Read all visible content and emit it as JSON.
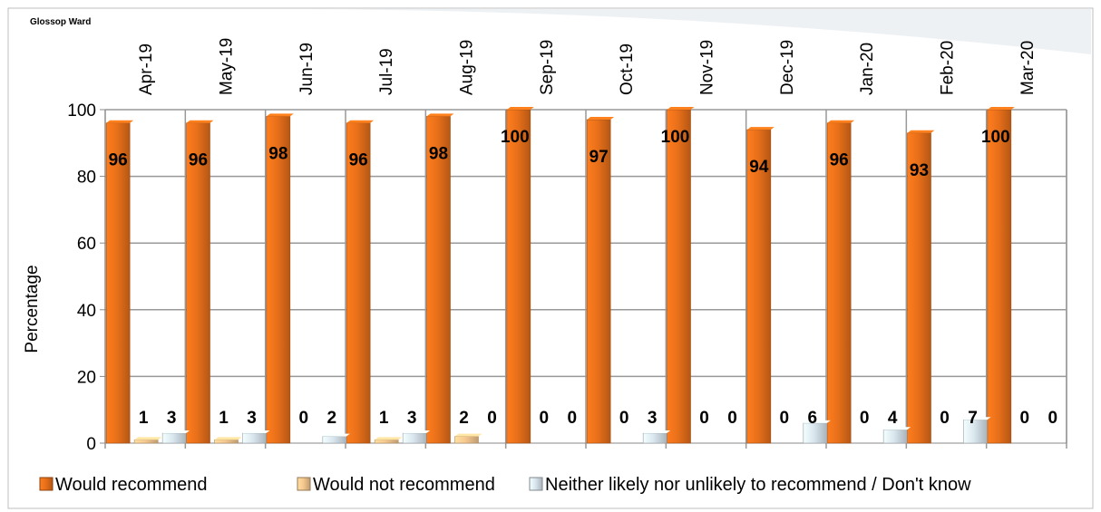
{
  "colors": {
    "recommend": "#e8701a",
    "not_recommend": "#f6c88f",
    "neither": "#d9e6ee",
    "grid": "#999999",
    "axis": "#888888",
    "frame": "#bfbfbf"
  },
  "chart_data": {
    "type": "bar",
    "title": "Glossop Ward",
    "ylabel": "Percentage",
    "xlabel": "",
    "ylim": [
      0,
      100
    ],
    "yticks": [
      0,
      20,
      40,
      60,
      80,
      100
    ],
    "grid": true,
    "legend_position": "bottom",
    "categories": [
      "Apr-19",
      "May-19",
      "Jun-19",
      "Jul-19",
      "Aug-19",
      "Sep-19",
      "Oct-19",
      "Nov-19",
      "Dec-19",
      "Jan-20",
      "Feb-20",
      "Mar-20"
    ],
    "series": [
      {
        "name": "Would recommend",
        "color_key": "recommend",
        "values": [
          96,
          96,
          98,
          96,
          98,
          100,
          97,
          100,
          94,
          96,
          93,
          100
        ]
      },
      {
        "name": "Would not recommend",
        "color_key": "not_recommend",
        "values": [
          1,
          1,
          0,
          1,
          2,
          0,
          0,
          0,
          0,
          0,
          0,
          0
        ]
      },
      {
        "name": "Neither likely nor unlikely to recommend / Don't know",
        "color_key": "neither",
        "values": [
          3,
          3,
          2,
          3,
          0,
          0,
          3,
          0,
          6,
          4,
          7,
          0
        ]
      }
    ]
  }
}
